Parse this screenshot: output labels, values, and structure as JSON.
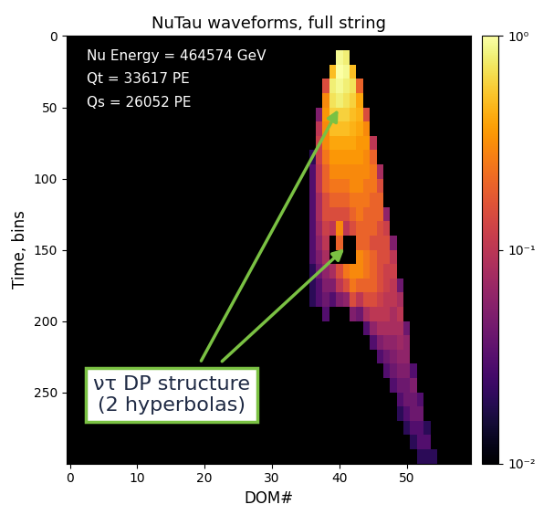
{
  "chart_data": {
    "type": "heatmap",
    "title": "NuTau waveforms, full string",
    "x_label": "DOM#",
    "y_label": "Time, bins",
    "annotations": [
      "Nu Energy = 464574 GeV",
      "Qt = 33617 PE",
      "Qs = 26052 PE"
    ],
    "callout": "ντ DP structure\n(2 hyperbolas)",
    "xlim": [
      -0.5,
      59.5
    ],
    "xticks": [
      0,
      10,
      20,
      30,
      40,
      50
    ],
    "ylim": [
      300,
      0
    ],
    "yticks": [
      0,
      50,
      100,
      150,
      200,
      250
    ],
    "colorbar": {
      "range": [
        0.01,
        1
      ],
      "ticks": [
        {
          "value": 1,
          "label": "10⁰"
        },
        {
          "value": 0.1,
          "label": "10⁻¹"
        },
        {
          "value": 0.01,
          "label": "10⁻²"
        }
      ]
    },
    "cells": {
      "time_step": 10,
      "columns": [
        {
          "dom": 36,
          "start": 80,
          "values": [
            0.02,
            0.03,
            0.03,
            0.03,
            0.03,
            0.03,
            0.03,
            0.03,
            0.02,
            0.02,
            0.02
          ]
        },
        {
          "dom": 37,
          "start": 50,
          "values": [
            0.05,
            0.1,
            0.12,
            0.12,
            0.1,
            0.1,
            0.08,
            0.08,
            0.07,
            0.06,
            0.05,
            0.04,
            0.03,
            0.03
          ]
        },
        {
          "dom": 38,
          "start": 30,
          "values": [
            0.15,
            0.3,
            0.35,
            0.3,
            0.3,
            0.25,
            0.2,
            0.2,
            0.15,
            0.15,
            0.12,
            0.1,
            0.08,
            0.06,
            0.05,
            0.04,
            0.03
          ]
        },
        {
          "dom": 39,
          "start": 20,
          "values": [
            0.5,
            0.8,
            0.7,
            0.6,
            0.5,
            0.4,
            0.35,
            0.3,
            0.25,
            0.2,
            0.15,
            0.1,
            null,
            null,
            0.08,
            0.05,
            0.03
          ]
        },
        {
          "dom": 40,
          "start": 10,
          "values": [
            0.9,
            1.0,
            0.9,
            0.8,
            0.6,
            0.5,
            0.4,
            0.35,
            0.3,
            0.25,
            0.2,
            0.15,
            0.3,
            0.2,
            null,
            0.15,
            0.1,
            0.05
          ]
        },
        {
          "dom": 41,
          "start": 10,
          "values": [
            0.8,
            0.9,
            0.8,
            0.7,
            0.6,
            0.5,
            0.4,
            0.35,
            0.3,
            0.25,
            0.2,
            0.15,
            0.1,
            null,
            null,
            0.25,
            0.15,
            0.06
          ]
        },
        {
          "dom": 42,
          "start": 20,
          "values": [
            0.5,
            0.7,
            0.6,
            0.5,
            0.45,
            0.4,
            0.35,
            0.3,
            0.3,
            0.25,
            0.2,
            0.15,
            null,
            null,
            0.3,
            0.25,
            0.15,
            0.05
          ]
        },
        {
          "dom": 43,
          "start": 30,
          "values": [
            0.2,
            0.4,
            0.45,
            0.4,
            0.35,
            0.35,
            0.3,
            0.3,
            0.25,
            0.25,
            0.2,
            0.2,
            0.3,
            0.3,
            0.2,
            0.1,
            0.04
          ]
        },
        {
          "dom": 44,
          "start": 50,
          "values": [
            0.15,
            0.3,
            0.35,
            0.3,
            0.3,
            0.25,
            0.25,
            0.2,
            0.2,
            0.2,
            0.25,
            0.25,
            0.2,
            0.15,
            0.08,
            0.03
          ]
        },
        {
          "dom": 45,
          "start": 70,
          "values": [
            0.1,
            0.2,
            0.25,
            0.25,
            0.2,
            0.2,
            0.2,
            0.15,
            0.2,
            0.2,
            0.2,
            0.15,
            0.1,
            0.06,
            0.03
          ]
        },
        {
          "dom": 46,
          "start": 90,
          "values": [
            0.08,
            0.15,
            0.2,
            0.2,
            0.15,
            0.15,
            0.15,
            0.15,
            0.15,
            0.12,
            0.1,
            0.08,
            0.05,
            0.03
          ]
        },
        {
          "dom": 47,
          "start": 120,
          "values": [
            0.06,
            0.12,
            0.15,
            0.15,
            0.12,
            0.12,
            0.1,
            0.1,
            0.08,
            0.06,
            0.04,
            0.03
          ]
        },
        {
          "dom": 48,
          "start": 140,
          "values": [
            0.05,
            0.1,
            0.12,
            0.1,
            0.1,
            0.08,
            0.08,
            0.06,
            0.05,
            0.04,
            0.03
          ]
        },
        {
          "dom": 49,
          "start": 170,
          "values": [
            0.04,
            0.08,
            0.1,
            0.08,
            0.07,
            0.06,
            0.05,
            0.04,
            0.03,
            0.02
          ]
        },
        {
          "dom": 50,
          "start": 200,
          "values": [
            0.04,
            0.06,
            0.06,
            0.05,
            0.04,
            0.04,
            0.03,
            0.02
          ]
        },
        {
          "dom": 51,
          "start": 230,
          "values": [
            0.03,
            0.05,
            0.04,
            0.04,
            0.03,
            0.02
          ]
        },
        {
          "dom": 52,
          "start": 250,
          "values": [
            0.03,
            0.04,
            0.03,
            0.03,
            0.02
          ]
        },
        {
          "dom": 53,
          "start": 270,
          "values": [
            0.02,
            0.03,
            0.02
          ]
        },
        {
          "dom": 54,
          "start": 290,
          "values": [
            0.02
          ]
        }
      ]
    }
  }
}
